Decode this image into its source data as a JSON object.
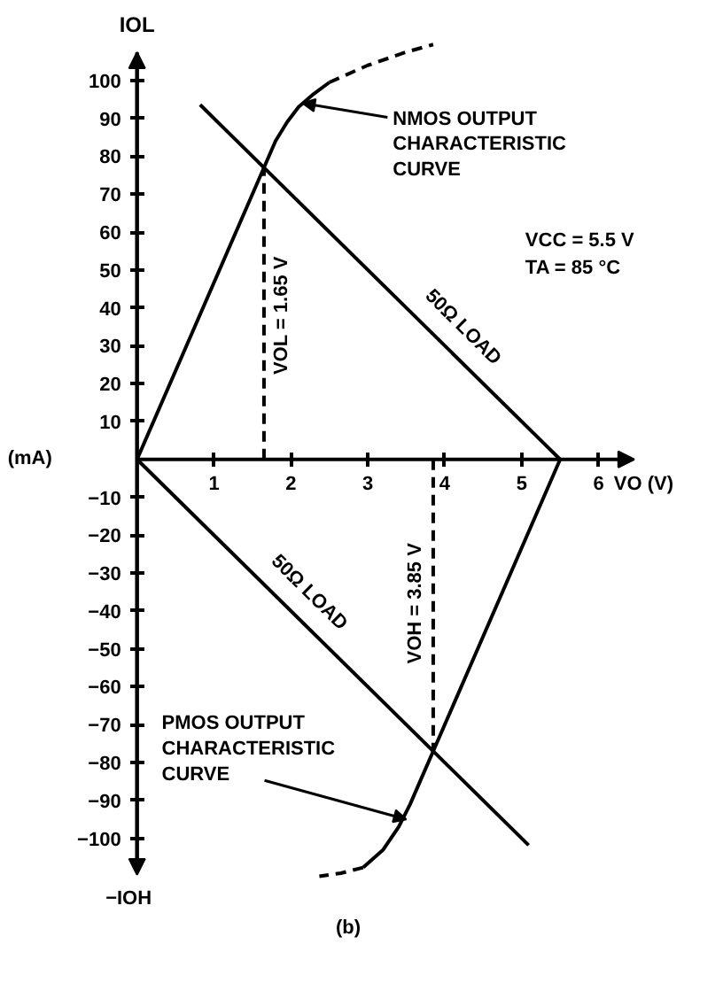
{
  "chart_data": {
    "type": "line",
    "xlabel": "VO (V)",
    "ylabel": "IOL",
    "xlim": [
      -1.77,
      7.26
    ],
    "ylim": [
      -130,
      121
    ],
    "xticks": [
      1,
      2,
      3,
      4,
      5,
      6
    ],
    "yticks": [
      -100,
      -90,
      -80,
      -70,
      -60,
      -50,
      -40,
      -30,
      -20,
      -10,
      10,
      20,
      30,
      40,
      50,
      60,
      70,
      80,
      90,
      100
    ],
    "grid": false,
    "series": [
      {
        "type": "line",
        "color": "#000000",
        "line_style": "solid",
        "x": [
          0,
          1.65,
          1.8,
          1.95,
          2.1,
          2.3,
          2.5
        ],
        "values": [
          0,
          77,
          84,
          89,
          93,
          96.5,
          99.5
        ]
      },
      {
        "type": "line",
        "color": "#000000",
        "line_style": "dashed",
        "x": [
          2.5,
          3.0,
          3.5,
          3.85
        ],
        "values": [
          99.5,
          104,
          107.5,
          109.5
        ]
      },
      {
        "type": "line",
        "color": "#000000",
        "line_style": "solid",
        "x": [
          0.82,
          5.5
        ],
        "values": [
          93.6,
          0
        ]
      },
      {
        "type": "line",
        "color": "#000000",
        "line_style": "solid",
        "x": [
          0,
          5.09
        ],
        "values": [
          0,
          -101.8
        ]
      },
      {
        "type": "line",
        "color": "#000000",
        "line_style": "solid",
        "x": [
          5.5,
          3.85,
          3.7,
          3.55,
          3.4,
          3.2,
          2.94
        ],
        "values": [
          0,
          -77,
          -84,
          -91,
          -97,
          -103,
          -107.7
        ]
      },
      {
        "type": "line",
        "color": "#000000",
        "line_style": "dashed",
        "x": [
          2.94,
          2.65,
          2.37
        ],
        "values": [
          -107.7,
          -109.2,
          -110
        ]
      },
      {
        "type": "line",
        "color": "#000000",
        "line_style": "dashed",
        "x": [
          1.65,
          1.65
        ],
        "values": [
          0,
          77
        ]
      },
      {
        "type": "line",
        "color": "#000000",
        "line_style": "dashed",
        "x": [
          3.85,
          3.85
        ],
        "values": [
          0,
          -77
        ]
      }
    ],
    "annotations": [
      {
        "text": "NMOS OUTPUT\nCHARACTERISTIC\nCURVE",
        "x": 2.15,
        "y": 94
      },
      {
        "text": "VOL = 1.65 V",
        "x": 1.65,
        "y": 38
      },
      {
        "text": "50Ω LOAD",
        "x": 4.0,
        "y": 30
      },
      {
        "text": "VCC = 5.5 V"
      },
      {
        "text": "TA = 85 °C"
      },
      {
        "text": "(mA)"
      },
      {
        "text": "50Ω LOAD",
        "x": 2.0,
        "y": -40
      },
      {
        "text": "VOH = 3.85 V",
        "x": 3.85,
        "y": -38
      },
      {
        "text": "PMOS OUTPUT\nCHARACTERISTIC\nCURVE",
        "x": 3.5,
        "y": -95
      },
      {
        "text": "−IOH"
      },
      {
        "text": "(b)"
      }
    ]
  }
}
